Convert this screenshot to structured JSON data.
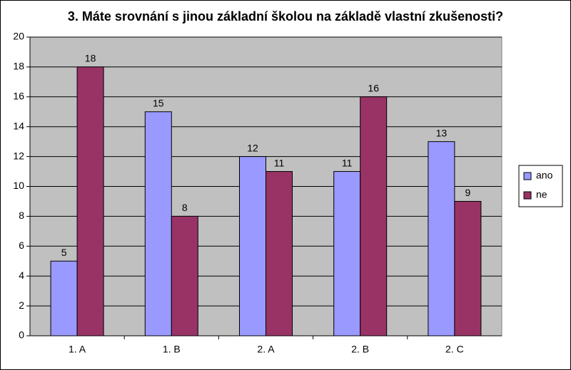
{
  "chart_data": {
    "type": "bar",
    "title": "3. Máte srovnání s jinou základní školou na základě vlastní zkušenosti?",
    "categories": [
      "1. A",
      "1. B",
      "2. A",
      "2. B",
      "2. C"
    ],
    "series": [
      {
        "name": "ano",
        "color": "#9999ff",
        "values": [
          5,
          15,
          12,
          11,
          13
        ]
      },
      {
        "name": "ne",
        "color": "#993366",
        "values": [
          18,
          8,
          11,
          16,
          9
        ]
      }
    ],
    "ylim": [
      0,
      20
    ],
    "yticks": [
      0,
      2,
      4,
      6,
      8,
      10,
      12,
      14,
      16,
      18,
      20
    ],
    "grid": true,
    "legend": "right",
    "plot_background": "#c0c0c0"
  }
}
